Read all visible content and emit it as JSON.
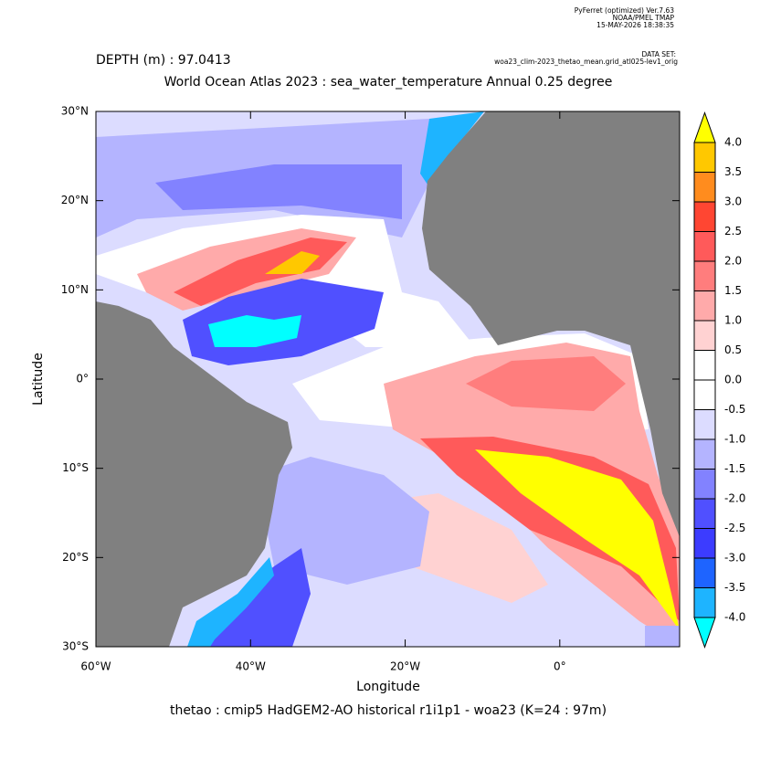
{
  "chart_data": {
    "type": "contour",
    "header": [
      "PyFerret (optimized) Ver.7.63",
      "NOAA/PMEL TMAP",
      "15-MAY-2026 18:38:35"
    ],
    "dataset_label": "DATA SET:",
    "dataset": "woa23_clim-2023_thetao_mean.grid_atl025-lev1_orig",
    "subtitle": "DEPTH (m) : 97.0413",
    "title": "World Ocean Atlas 2023 : sea_water_temperature Annual  0.25 degree",
    "xlabel": "Longitude",
    "ylabel": "Latitude",
    "caption": "thetao : cmip5 HadGEM2-AO historical r1i1p1 - woa23  (K=24 : 97m)",
    "xlim": [
      -60,
      15.5
    ],
    "ylim": [
      -30,
      30
    ],
    "xticks": [
      {
        "value": -60,
        "label": "60°W"
      },
      {
        "value": -40,
        "label": "40°W"
      },
      {
        "value": -20,
        "label": "20°W"
      },
      {
        "value": 0,
        "label": "0°"
      }
    ],
    "yticks": [
      {
        "value": -30,
        "label": "30°S"
      },
      {
        "value": -20,
        "label": "20°S"
      },
      {
        "value": -10,
        "label": "10°S"
      },
      {
        "value": 0,
        "label": "0°"
      },
      {
        "value": 10,
        "label": "10°N"
      },
      {
        "value": 20,
        "label": "20°N"
      },
      {
        "value": 30,
        "label": "30°N"
      }
    ],
    "levels": [
      {
        "value": -4,
        "label": "-4.0"
      },
      {
        "value": -3.5,
        "label": "-3.5"
      },
      {
        "value": -3,
        "label": "-3.0"
      },
      {
        "value": -2.5,
        "label": "-2.5"
      },
      {
        "value": -2,
        "label": "-2.0"
      },
      {
        "value": -1.5,
        "label": "-1.5"
      },
      {
        "value": -1,
        "label": "-1.0"
      },
      {
        "value": -0.5,
        "label": "-0.5"
      },
      {
        "value": 0,
        "label": "0.0"
      },
      {
        "value": 0.5,
        "label": "0.5"
      },
      {
        "value": 1,
        "label": "1.0"
      },
      {
        "value": 1.5,
        "label": "1.5"
      },
      {
        "value": 2,
        "label": "2.0"
      },
      {
        "value": 2.5,
        "label": "2.5"
      },
      {
        "value": 3,
        "label": "3.0"
      },
      {
        "value": 3.5,
        "label": "3.5"
      },
      {
        "value": 4,
        "label": "4.0"
      }
    ],
    "colors": [
      "#00ffff",
      "#1eb4ff",
      "#1e64ff",
      "#3c3cff",
      "#5050ff",
      "#8282ff",
      "#b4b4ff",
      "#dcdcff",
      "#ffffff",
      "#ffffff",
      "#ffd2d2",
      "#ffaaaa",
      "#ff7d7d",
      "#ff5a5a",
      "#ff4632",
      "#ff8c1e",
      "#ffc800",
      "#ffff00"
    ],
    "land_color": "#808080"
  }
}
